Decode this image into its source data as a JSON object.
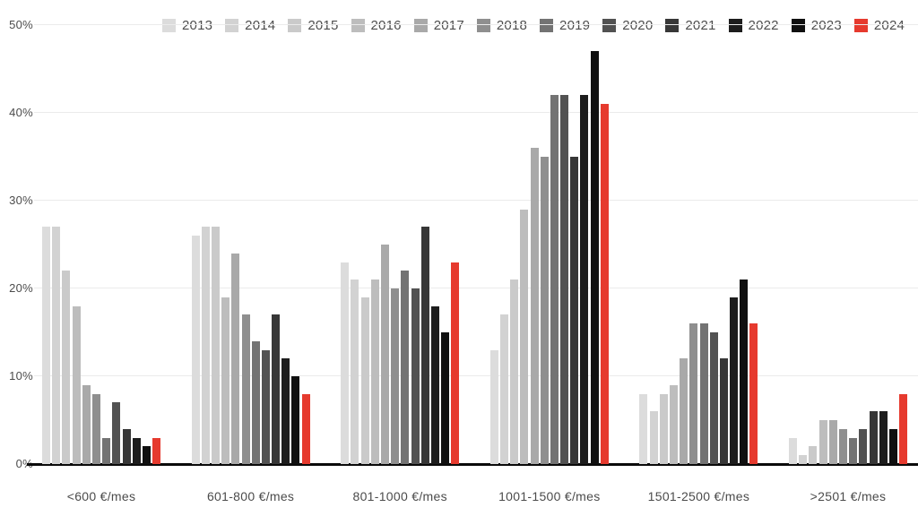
{
  "chart_data": {
    "type": "bar",
    "title": "",
    "xlabel": "",
    "ylabel": "",
    "ylim": [
      0,
      50
    ],
    "y_ticks": [
      "0%",
      "10%",
      "20%",
      "30%",
      "40%",
      "50%"
    ],
    "grid": "horizontal",
    "legend_position": "top",
    "axis_color": "#0b0b0b",
    "gridline_color": "#ebebeb",
    "highlight_series": "2024",
    "highlight_color": "#e63a2e",
    "categories": [
      "<600 €/mes",
      "601-800 €/mes",
      "801-1000 €/mes",
      "1001-1500 €/mes",
      "1501-2500 €/mes",
      ">2501 €/mes"
    ],
    "series": [
      {
        "name": "2013",
        "color": "#dcdcdc",
        "values": [
          27,
          26,
          23,
          13,
          8,
          3
        ]
      },
      {
        "name": "2014",
        "color": "#d2d2d2",
        "values": [
          27,
          27,
          21,
          17,
          6,
          1
        ]
      },
      {
        "name": "2015",
        "color": "#cacaca",
        "values": [
          22,
          27,
          19,
          21,
          8,
          2
        ]
      },
      {
        "name": "2016",
        "color": "#bdbdbd",
        "values": [
          18,
          19,
          21,
          29,
          9,
          5
        ]
      },
      {
        "name": "2017",
        "color": "#a9a9a9",
        "values": [
          9,
          24,
          25,
          36,
          12,
          5
        ]
      },
      {
        "name": "2018",
        "color": "#8f8f8f",
        "values": [
          8,
          17,
          20,
          35,
          16,
          4
        ]
      },
      {
        "name": "2019",
        "color": "#737373",
        "values": [
          3,
          14,
          22,
          42,
          16,
          3
        ]
      },
      {
        "name": "2020",
        "color": "#525252",
        "values": [
          7,
          13,
          20,
          42,
          15,
          4
        ]
      },
      {
        "name": "2021",
        "color": "#373737",
        "values": [
          4,
          17,
          27,
          35,
          12,
          6
        ]
      },
      {
        "name": "2022",
        "color": "#1d1d1d",
        "values": [
          3,
          12,
          18,
          42,
          19,
          6
        ]
      },
      {
        "name": "2023",
        "color": "#101010",
        "values": [
          2,
          10,
          15,
          47,
          21,
          4
        ]
      },
      {
        "name": "2024",
        "color": "#e63a2e",
        "values": [
          3,
          8,
          23,
          41,
          16,
          8
        ]
      }
    ]
  }
}
